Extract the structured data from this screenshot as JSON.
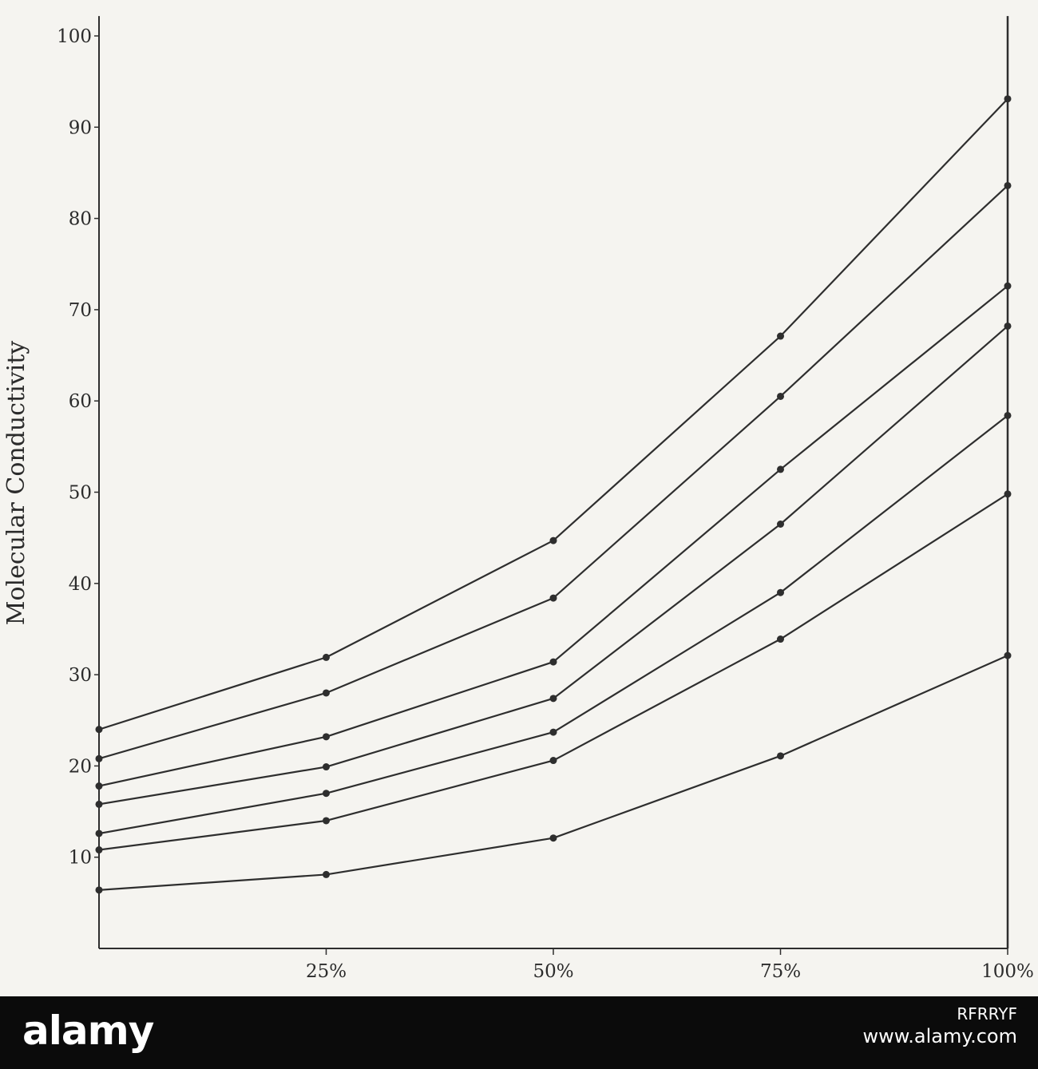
{
  "chart_data": {
    "type": "line",
    "title": "",
    "xlabel": "",
    "ylabel": "Molecular Conductivity",
    "x": [
      0,
      25,
      50,
      75,
      100
    ],
    "xtick_labels": [
      "25%",
      "50%",
      "75%",
      "100%"
    ],
    "xtick_values": [
      25,
      50,
      75,
      100
    ],
    "ytick_values": [
      10,
      20,
      30,
      40,
      50,
      60,
      70,
      80,
      90,
      100
    ],
    "ytick_labels": [
      "10",
      "20",
      "30",
      "40",
      "50",
      "60",
      "70",
      "80",
      "90",
      "100"
    ],
    "xlim": [
      0,
      100
    ],
    "ylim": [
      0,
      102
    ],
    "grid": false,
    "legend": "none",
    "line_color": "#2e2e2e",
    "series": [
      {
        "values": [
          24.0,
          31.9,
          44.7,
          67.1,
          93.1
        ]
      },
      {
        "values": [
          20.8,
          28.0,
          38.4,
          60.5,
          83.6
        ]
      },
      {
        "values": [
          17.8,
          23.2,
          31.4,
          52.5,
          72.6
        ]
      },
      {
        "values": [
          15.8,
          19.9,
          27.4,
          46.5,
          68.2
        ]
      },
      {
        "values": [
          12.6,
          17.0,
          23.7,
          39.0,
          58.4
        ]
      },
      {
        "values": [
          10.8,
          14.0,
          20.6,
          33.9,
          49.8
        ]
      },
      {
        "values": [
          6.4,
          8.1,
          12.1,
          21.1,
          32.1
        ]
      }
    ]
  },
  "banner": {
    "logo": "alamy",
    "image_code": "RFRRYF",
    "url": "www.alamy.com"
  }
}
